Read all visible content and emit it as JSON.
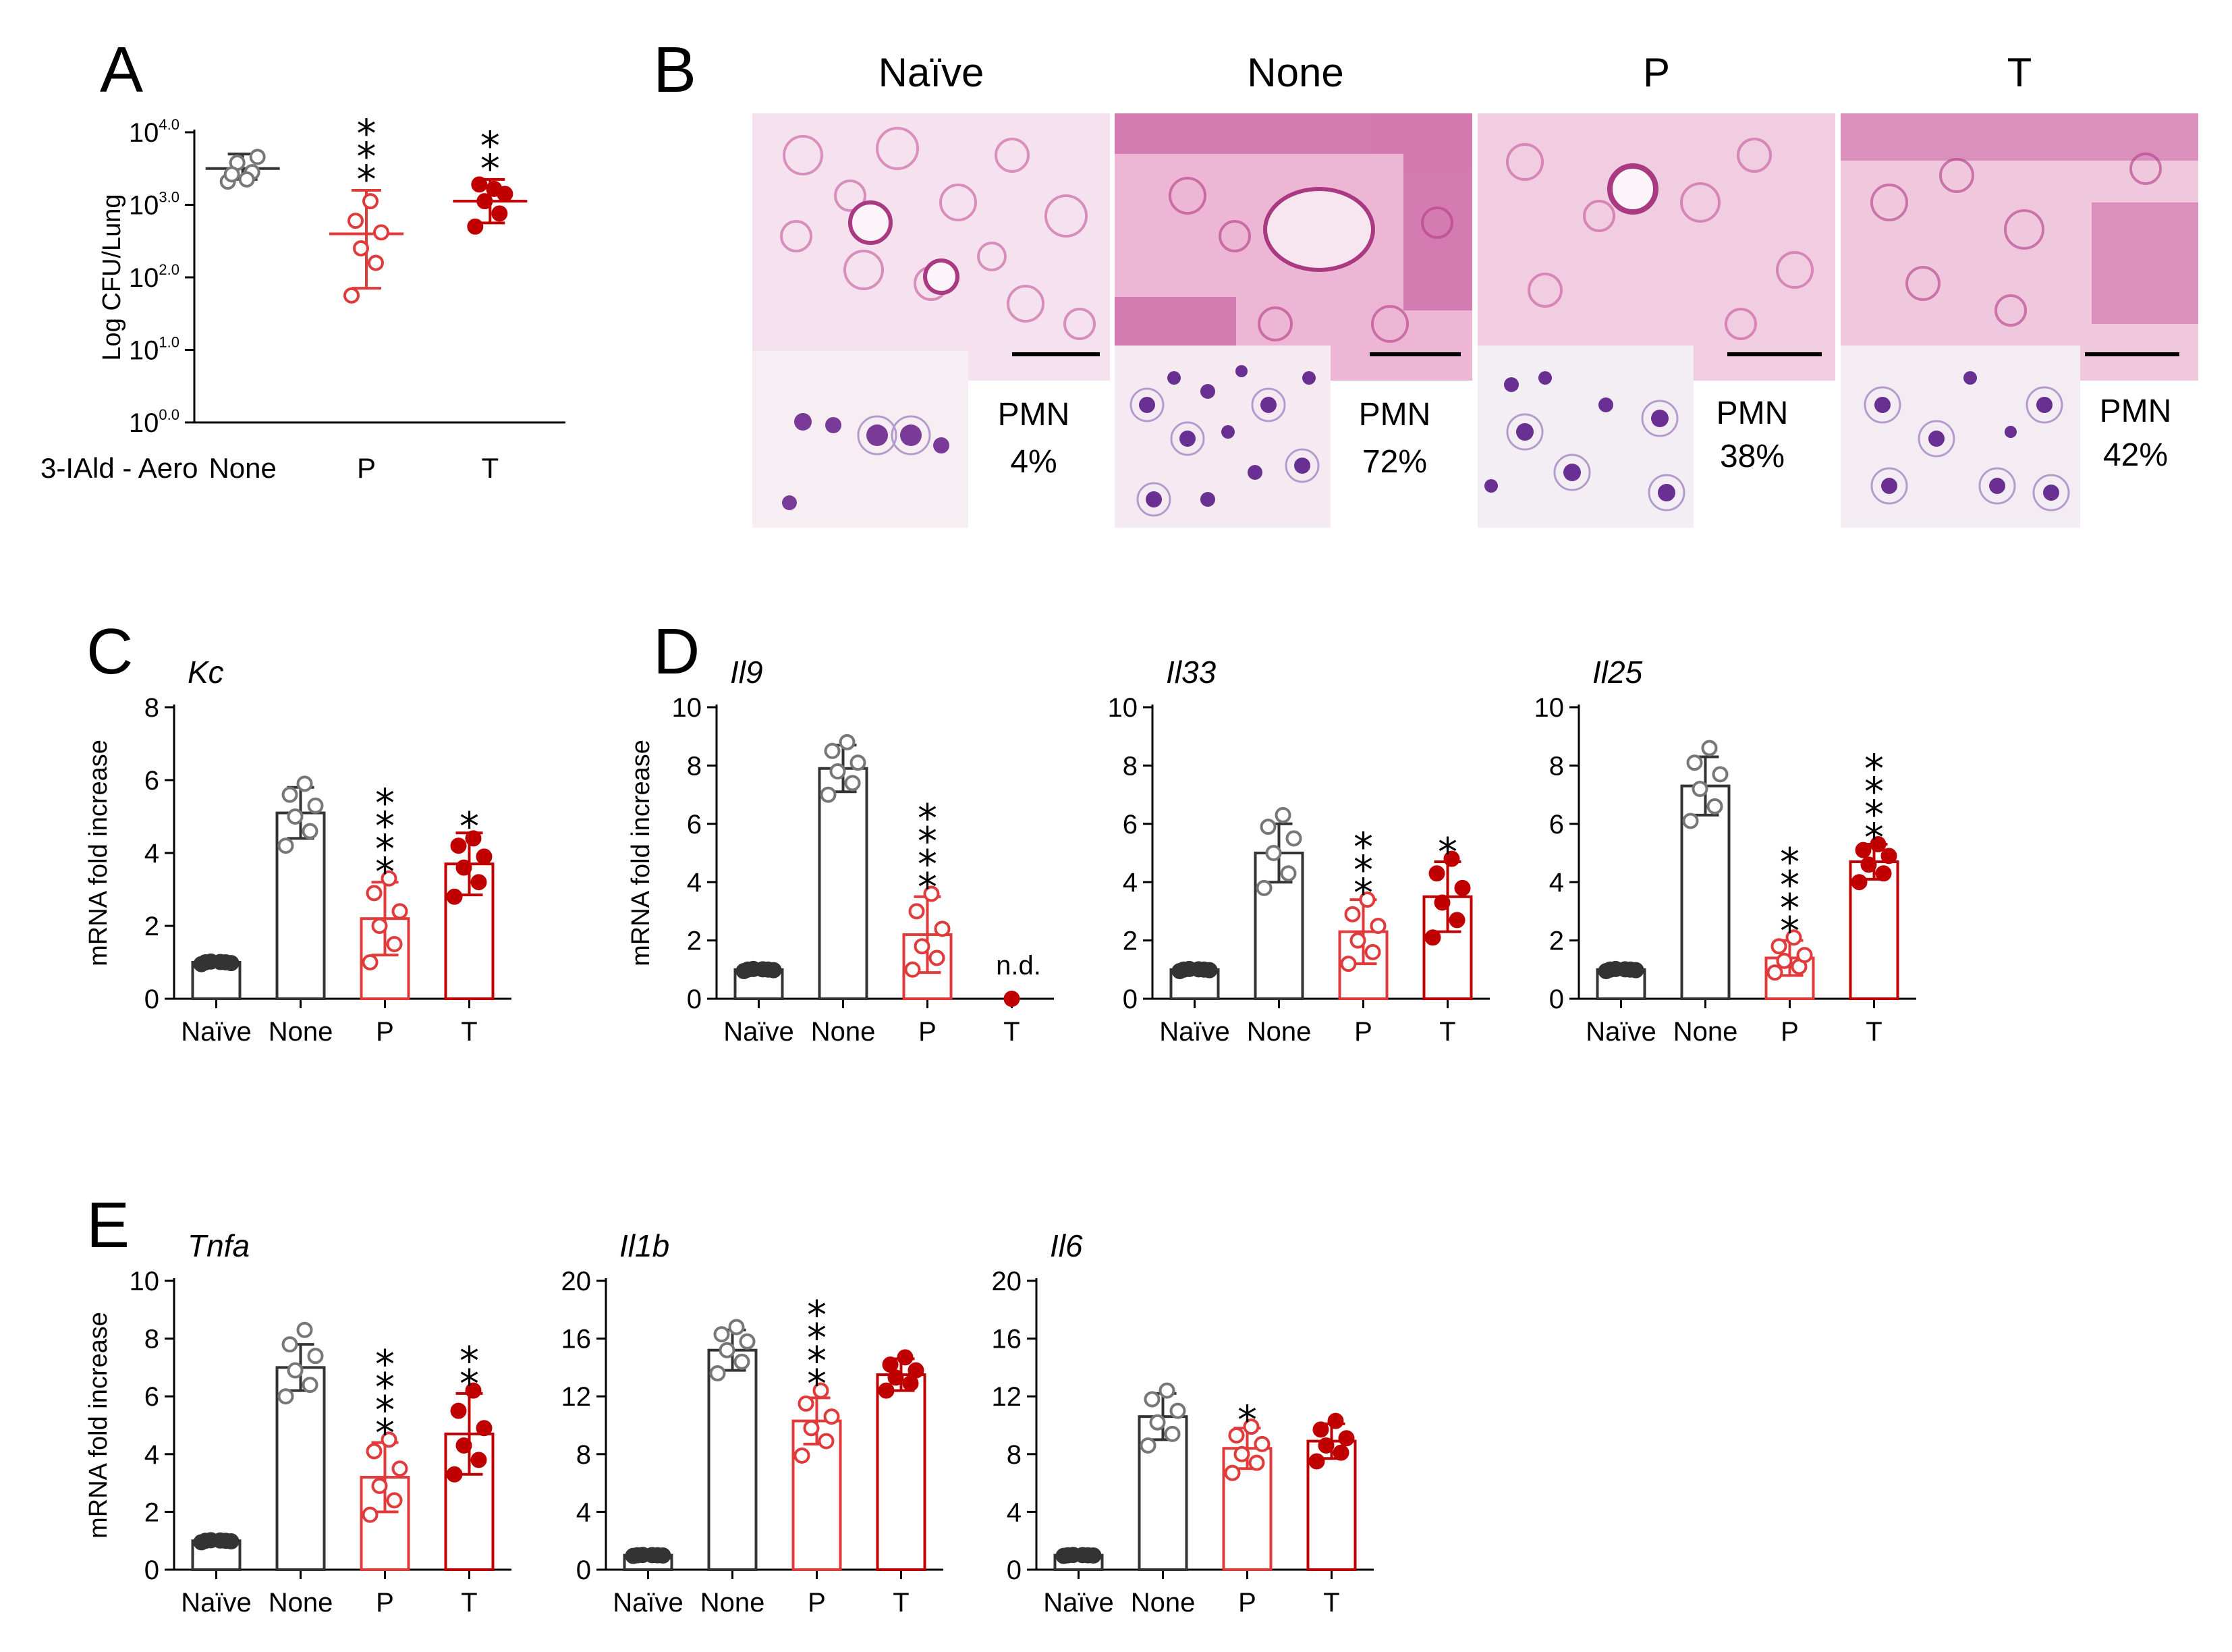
{
  "colors": {
    "gray": "#777777",
    "dark": "#333333",
    "light_red": "#e03a3a",
    "dark_red": "#c00000",
    "tissue_bg": "#f3dce9",
    "tissue_stain": "#c0428f",
    "cell_bg": "#f6eef3",
    "cell_nucleus": "#5a2a8a",
    "cell_body": "#b9a2d6"
  },
  "panel_a": {
    "letter": "A",
    "row_label": "3-IAld - Aero"
  },
  "panel_b": {
    "letter": "B",
    "columns": [
      {
        "title": "Naïve",
        "pmn_label": "PMN",
        "pmn_value": "4%"
      },
      {
        "title": "None",
        "pmn_label": "PMN",
        "pmn_value": "72%"
      },
      {
        "title": "P",
        "pmn_label": "PMN",
        "pmn_value": "38%"
      },
      {
        "title": "T",
        "pmn_label": "PMN",
        "pmn_value": "42%"
      }
    ]
  },
  "panel_letters": {
    "c": "C",
    "d": "D",
    "e": "E"
  },
  "chart_data": [
    {
      "id": "A",
      "type": "scatter",
      "title": "",
      "ylabel": "Log CFU/Lung",
      "scale": "log10",
      "ylim": [
        0,
        4
      ],
      "ytick_labels": [
        {
          "base": "10",
          "exp": "0.0"
        },
        {
          "base": "10",
          "exp": "1.0"
        },
        {
          "base": "10",
          "exp": "2.0"
        },
        {
          "base": "10",
          "exp": "3.0"
        },
        {
          "base": "10",
          "exp": "4.0"
        }
      ],
      "categories": [
        "None",
        "P",
        "T"
      ],
      "colors": [
        "gray_open",
        "red_open",
        "red_filled"
      ],
      "means": [
        3.5,
        2.6,
        3.05
      ],
      "sd_low": [
        3.35,
        1.85,
        2.75
      ],
      "sd_high": [
        3.7,
        3.2,
        3.35
      ],
      "points": [
        [
          3.32,
          3.45,
          3.58,
          3.66,
          3.42,
          3.35
        ],
        [
          1.75,
          2.2,
          2.4,
          2.62,
          2.78,
          3.05
        ],
        [
          2.7,
          2.88,
          3.05,
          3.15,
          3.28,
          3.22
        ]
      ],
      "significance": [
        "",
        "***",
        "**"
      ]
    },
    {
      "id": "C",
      "type": "bar",
      "title": "Kc",
      "ylabel": "mRNA fold increase",
      "ylim": [
        0,
        8
      ],
      "yticks": [
        0,
        2,
        4,
        6,
        8
      ],
      "categories": [
        "Naïve",
        "None",
        "P",
        "T"
      ],
      "colors": [
        "black_filled",
        "gray_open",
        "red_open",
        "red_filled"
      ],
      "values": [
        1,
        5.1,
        2.2,
        3.7
      ],
      "errors": [
        0.05,
        0.7,
        1.0,
        0.85
      ],
      "points": [
        [
          0.95,
          1.0,
          1.02,
          0.98,
          1.0,
          1.01
        ],
        [
          4.2,
          4.6,
          5.0,
          5.3,
          5.6,
          5.9
        ],
        [
          1.0,
          1.5,
          2.0,
          2.4,
          2.9,
          3.3
        ],
        [
          2.8,
          3.2,
          3.6,
          3.9,
          4.2,
          4.4
        ]
      ],
      "significance": [
        "",
        "",
        "****",
        "*"
      ]
    },
    {
      "id": "D1",
      "type": "bar",
      "title": "Il9",
      "ylabel": "mRNA fold increase",
      "ylim": [
        0,
        10
      ],
      "yticks": [
        0,
        2,
        4,
        6,
        8,
        10
      ],
      "categories": [
        "Naïve",
        "None",
        "P",
        "T"
      ],
      "colors": [
        "black_filled",
        "gray_open",
        "red_open",
        "red_filled"
      ],
      "values": [
        1,
        7.9,
        2.2,
        0
      ],
      "errors": [
        0.05,
        0.8,
        1.3,
        0
      ],
      "points": [
        [
          0.95,
          1.0,
          1.02,
          0.98,
          1.0,
          1.01
        ],
        [
          7.0,
          7.4,
          7.8,
          8.1,
          8.5,
          8.8
        ],
        [
          1.0,
          1.4,
          1.8,
          2.4,
          3.0,
          3.6
        ],
        [
          0.0
        ]
      ],
      "significance": [
        "",
        "",
        "****",
        ""
      ],
      "annotation": "n.d."
    },
    {
      "id": "D2",
      "type": "bar",
      "title": "Il33",
      "ylabel": "",
      "ylim": [
        0,
        10
      ],
      "yticks": [
        0,
        2,
        4,
        6,
        8,
        10
      ],
      "categories": [
        "Naïve",
        "None",
        "P",
        "T"
      ],
      "colors": [
        "black_filled",
        "gray_open",
        "red_open",
        "red_filled"
      ],
      "values": [
        1,
        5.0,
        2.3,
        3.5
      ],
      "errors": [
        0.05,
        1.0,
        1.1,
        1.2
      ],
      "points": [
        [
          0.95,
          1.0,
          1.02,
          0.98,
          1.0,
          1.01
        ],
        [
          3.8,
          4.3,
          5.0,
          5.5,
          5.9,
          6.3
        ],
        [
          1.2,
          1.6,
          2.0,
          2.5,
          2.9,
          3.4
        ],
        [
          2.1,
          2.7,
          3.3,
          3.8,
          4.3,
          4.8
        ]
      ],
      "significance": [
        "",
        "",
        "***",
        "*"
      ]
    },
    {
      "id": "D3",
      "type": "bar",
      "title": "Il25",
      "ylabel": "",
      "ylim": [
        0,
        10
      ],
      "yticks": [
        0,
        2,
        4,
        6,
        8,
        10
      ],
      "categories": [
        "Naïve",
        "None",
        "P",
        "T"
      ],
      "colors": [
        "black_filled",
        "gray_open",
        "red_open",
        "red_filled"
      ],
      "values": [
        1,
        7.3,
        1.4,
        4.7
      ],
      "errors": [
        0.05,
        1.0,
        0.6,
        0.6
      ],
      "points": [
        [
          0.95,
          1.0,
          1.02,
          0.98,
          1.0,
          1.01
        ],
        [
          6.1,
          6.6,
          7.2,
          7.7,
          8.1,
          8.6
        ],
        [
          0.9,
          1.1,
          1.3,
          1.5,
          1.8,
          2.1
        ],
        [
          4.0,
          4.3,
          4.6,
          4.9,
          5.1,
          5.3
        ]
      ],
      "significance": [
        "",
        "",
        "****",
        "****"
      ]
    },
    {
      "id": "E1",
      "type": "bar",
      "title": "Tnfa",
      "ylabel": "mRNA fold increase",
      "ylim": [
        0,
        10
      ],
      "yticks": [
        0,
        2,
        4,
        6,
        8,
        10
      ],
      "categories": [
        "Naïve",
        "None",
        "P",
        "T"
      ],
      "colors": [
        "black_filled",
        "gray_open",
        "red_open",
        "red_filled"
      ],
      "values": [
        1,
        7.0,
        3.2,
        4.7
      ],
      "errors": [
        0.05,
        0.8,
        1.2,
        1.4
      ],
      "points": [
        [
          0.95,
          1.0,
          1.02,
          0.98,
          1.0,
          1.01
        ],
        [
          6.0,
          6.4,
          6.9,
          7.4,
          7.8,
          8.3
        ],
        [
          1.9,
          2.4,
          2.9,
          3.5,
          4.1,
          4.5
        ],
        [
          3.3,
          3.8,
          4.3,
          4.9,
          5.5,
          6.2
        ]
      ],
      "significance": [
        "",
        "",
        "****",
        "**"
      ]
    },
    {
      "id": "E2",
      "type": "bar",
      "title": "Il1b",
      "ylabel": "",
      "ylim": [
        0,
        20
      ],
      "yticks": [
        0,
        4,
        8,
        12,
        16,
        20
      ],
      "categories": [
        "Naïve",
        "None",
        "P",
        "T"
      ],
      "colors": [
        "black_filled",
        "gray_open",
        "red_open",
        "red_filled"
      ],
      "values": [
        1,
        15.2,
        10.3,
        13.5
      ],
      "errors": [
        0.1,
        1.4,
        1.6,
        1.1
      ],
      "points": [
        [
          0.95,
          1.0,
          1.02,
          0.98,
          1.0,
          1.01
        ],
        [
          13.6,
          14.4,
          15.2,
          15.8,
          16.3,
          16.8
        ],
        [
          7.9,
          8.9,
          9.8,
          10.6,
          11.5,
          12.4
        ],
        [
          12.4,
          12.9,
          13.3,
          13.8,
          14.2,
          14.7
        ]
      ],
      "significance": [
        "",
        "",
        "****",
        ""
      ]
    },
    {
      "id": "E3",
      "type": "bar",
      "title": "Il6",
      "ylabel": "",
      "ylim": [
        0,
        20
      ],
      "yticks": [
        0,
        4,
        8,
        12,
        16,
        20
      ],
      "categories": [
        "Naïve",
        "None",
        "P",
        "T"
      ],
      "colors": [
        "black_filled",
        "gray_open",
        "red_open",
        "red_filled"
      ],
      "values": [
        1,
        10.6,
        8.4,
        8.9
      ],
      "errors": [
        0.1,
        1.6,
        1.4,
        1.2
      ],
      "points": [
        [
          0.95,
          1.0,
          1.02,
          0.98,
          1.0,
          1.01
        ],
        [
          8.6,
          9.4,
          10.2,
          11.0,
          11.8,
          12.4
        ],
        [
          6.7,
          7.4,
          8.0,
          8.7,
          9.3,
          9.9
        ],
        [
          7.5,
          8.1,
          8.6,
          9.1,
          9.7,
          10.3
        ]
      ],
      "significance": [
        "",
        "",
        "*",
        ""
      ]
    }
  ]
}
